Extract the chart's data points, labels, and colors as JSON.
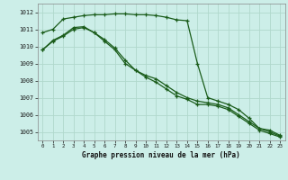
{
  "title": "Graphe pression niveau de la mer (hPa)",
  "bg_color": "#cceee8",
  "grid_color": "#aaddcc",
  "line_color": "#1a5c1a",
  "xlim": [
    -0.5,
    23.5
  ],
  "ylim": [
    1004.5,
    1012.5
  ],
  "yticks": [
    1005,
    1006,
    1007,
    1008,
    1009,
    1010,
    1011,
    1012
  ],
  "xticks": [
    0,
    1,
    2,
    3,
    4,
    5,
    6,
    7,
    8,
    9,
    10,
    11,
    12,
    13,
    14,
    15,
    16,
    17,
    18,
    19,
    20,
    21,
    22,
    23
  ],
  "series1": [
    1010.8,
    1011.0,
    1011.6,
    1011.7,
    1011.8,
    1011.85,
    1011.85,
    1011.9,
    1011.9,
    1011.85,
    1011.85,
    1011.8,
    1011.7,
    1011.55,
    1011.5,
    1009.0,
    1007.0,
    1006.8,
    1006.6,
    1006.3,
    1005.8,
    1005.2,
    1005.1,
    1004.8
  ],
  "series2": [
    1009.8,
    1010.35,
    1010.65,
    1011.1,
    1011.15,
    1010.8,
    1010.3,
    1009.8,
    1009.0,
    1008.6,
    1008.3,
    1008.1,
    1007.7,
    1007.3,
    1007.0,
    1006.8,
    1006.7,
    1006.6,
    1006.4,
    1006.0,
    1005.6,
    1005.2,
    1005.0,
    1004.75
  ],
  "series3": [
    1009.8,
    1010.3,
    1010.6,
    1011.0,
    1011.1,
    1010.8,
    1010.4,
    1009.9,
    1009.2,
    1008.6,
    1008.2,
    1007.9,
    1007.5,
    1007.1,
    1006.9,
    1006.6,
    1006.6,
    1006.5,
    1006.3,
    1005.9,
    1005.5,
    1005.1,
    1004.9,
    1004.7
  ]
}
